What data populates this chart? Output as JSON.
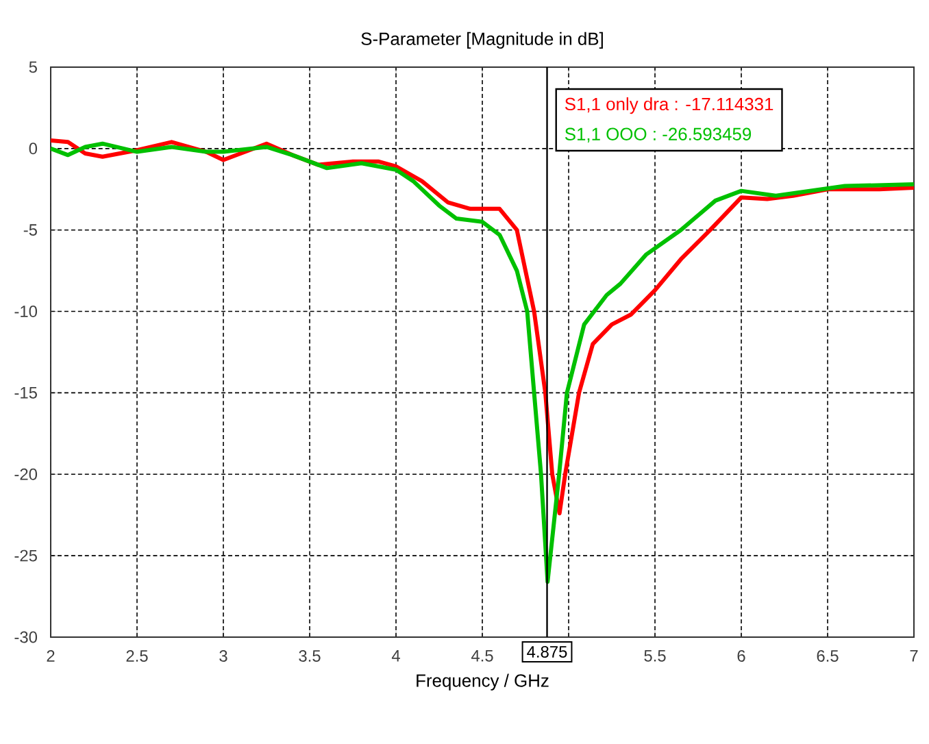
{
  "chart_data": {
    "type": "line",
    "title": "S-Parameter [Magnitude in dB]",
    "xlabel": "Frequency / GHz",
    "xlim": [
      2,
      7
    ],
    "ylim": [
      -30,
      5
    ],
    "xticks": [
      2,
      2.5,
      3,
      3.5,
      4,
      4.5,
      {
        "value": 5,
        "label": null
      },
      5.5,
      6,
      6.5,
      7
    ],
    "yticks": [
      -30,
      -25,
      -20,
      -15,
      -10,
      -5,
      0,
      5
    ],
    "grid": true,
    "marker": "none",
    "line_style": "solid",
    "series": [
      {
        "color": "#ff0000",
        "x": [
          2.0,
          2.1,
          2.2,
          2.3,
          2.5,
          2.7,
          2.9,
          3.0,
          3.1,
          3.25,
          3.4,
          3.55,
          3.75,
          3.9,
          4.0,
          4.15,
          4.3,
          4.43,
          4.6,
          4.7,
          4.8,
          4.865,
          4.905,
          4.947,
          4.98,
          5.06,
          5.14,
          5.25,
          5.36,
          5.5,
          5.65,
          5.82,
          6.0,
          6.15,
          6.3,
          6.5,
          6.8,
          7.0
        ],
        "values": [
          0.5,
          0.4,
          -0.3,
          -0.5,
          -0.1,
          0.4,
          -0.2,
          -0.7,
          -0.3,
          0.3,
          -0.4,
          -1.0,
          -0.8,
          -0.8,
          -1.1,
          -2.0,
          -3.3,
          -3.7,
          -3.7,
          -5.0,
          -10.0,
          -15.0,
          -20.0,
          -22.4,
          -20.0,
          -15.0,
          -12.0,
          -10.8,
          -10.2,
          -8.7,
          -6.8,
          -5.0,
          -3.0,
          -3.1,
          -2.9,
          -2.5,
          -2.5,
          -2.4
        ]
      },
      {
        "color": "#00c000",
        "x": [
          2.0,
          2.1,
          2.2,
          2.3,
          2.5,
          2.7,
          2.9,
          3.0,
          3.25,
          3.4,
          3.6,
          3.8,
          4.0,
          4.1,
          4.25,
          4.35,
          4.5,
          4.6,
          4.7,
          4.76,
          4.84,
          4.878,
          4.945,
          4.99,
          5.09,
          5.22,
          5.3,
          5.45,
          5.65,
          5.85,
          6.0,
          6.2,
          6.4,
          6.6,
          7.0
        ],
        "values": [
          0.0,
          -0.4,
          0.1,
          0.3,
          -0.2,
          0.1,
          -0.2,
          -0.2,
          0.1,
          -0.4,
          -1.2,
          -0.9,
          -1.3,
          -2.0,
          -3.5,
          -4.3,
          -4.5,
          -5.3,
          -7.5,
          -10.0,
          -20.0,
          -26.6,
          -20.0,
          -15.0,
          -10.8,
          -9.0,
          -8.3,
          -6.5,
          -5.0,
          -3.2,
          -2.6,
          -2.9,
          -2.6,
          -2.3,
          -2.2
        ]
      }
    ],
    "ref_lines": [
      {
        "axis": "x",
        "value": 4.875,
        "label": "4.875",
        "color": "#000000"
      }
    ],
    "annotations": [
      "S1,1 only dra : -17.114331",
      "S1,1 OOO : -26.593459"
    ]
  }
}
